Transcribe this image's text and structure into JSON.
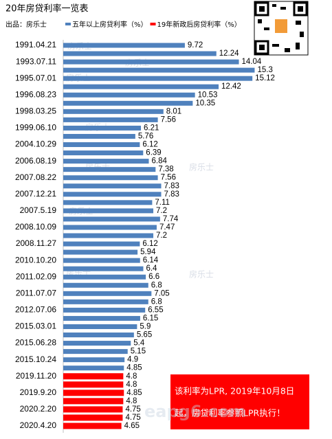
{
  "chart_data": {
    "type": "bar",
    "orientation": "horizontal",
    "title": "20年房贷利率一览表",
    "subtitle": "出品：房乐士",
    "categories": [
      "1991.04.21",
      null,
      "1993.07.11",
      null,
      "1995.07.01",
      null,
      "1996.08.23",
      null,
      "1998.03.25",
      null,
      "1999.06.10",
      null,
      "2004.10.29",
      null,
      "2006.08.19",
      null,
      "2007.08.22",
      null,
      "2007.12.21",
      null,
      "2007.5.19",
      null,
      "2008.10.09",
      null,
      "2008.11.27",
      null,
      "2010.10.20",
      null,
      "2011.02.09",
      null,
      "2011.07.07",
      null,
      "2012.07.06",
      null,
      "2015.03.01",
      null,
      "2015.06.28",
      null,
      "2015.10.24",
      null,
      "2019.11.20",
      null,
      "2019.9.20",
      null,
      "2020.2.20",
      null,
      "2020.4.20"
    ],
    "series": [
      {
        "name": "五年以上房贷利率（%）",
        "color": "#4f81bd",
        "values": [
          9.72,
          12.24,
          14.04,
          15.3,
          15.12,
          12.42,
          10.53,
          10.35,
          8.01,
          7.56,
          6.21,
          5.76,
          6.12,
          6.39,
          6.84,
          7.38,
          7.56,
          7.83,
          7.83,
          7.11,
          7.2,
          7.74,
          7.47,
          7.2,
          6.12,
          5.94,
          6.14,
          6.4,
          6.6,
          6.8,
          7.05,
          6.8,
          6.55,
          6.15,
          5.9,
          5.65,
          5.4,
          5.15,
          4.9,
          4.85,
          null,
          null,
          null,
          null,
          null,
          null,
          null
        ]
      },
      {
        "name": "19年新政后房贷利率（%）",
        "color": "#ff0000",
        "values": [
          null,
          null,
          null,
          null,
          null,
          null,
          null,
          null,
          null,
          null,
          null,
          null,
          null,
          null,
          null,
          null,
          null,
          null,
          null,
          null,
          null,
          null,
          null,
          null,
          null,
          null,
          null,
          null,
          null,
          null,
          null,
          null,
          null,
          null,
          null,
          null,
          null,
          null,
          null,
          null,
          4.8,
          4.8,
          4.85,
          4.8,
          4.75,
          4.75,
          4.65
        ]
      }
    ],
    "xlim": [
      0,
      20
    ],
    "annotation": [
      "该利率为LPR, 2019年10月8日",
      "起，房贷利率参照LPR执行！"
    ],
    "watermark": "房乐士",
    "site_watermark": "eapg6.com"
  }
}
